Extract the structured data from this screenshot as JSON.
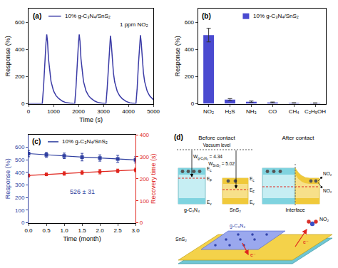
{
  "chart_data": [
    {
      "type": "line",
      "title": "(a)",
      "x_label": "Time (s)",
      "y_label": "Response (%)",
      "x": [
        0,
        550,
        600,
        650,
        700,
        730,
        760,
        800,
        850,
        900,
        1000,
        1100,
        1200,
        1350,
        1500,
        1850,
        1900,
        1950,
        2000,
        2030,
        2060,
        2100,
        2150,
        2200,
        2300,
        2400,
        2500,
        2650,
        2800,
        3100,
        3150,
        3200,
        3250,
        3280,
        3310,
        3350,
        3400,
        3450,
        3550,
        3650,
        3750,
        3900,
        4050,
        4300,
        4350,
        4400,
        4450,
        4480,
        4510,
        4550,
        4600,
        4650,
        4750,
        4850,
        4950,
        5000
      ],
      "series": [
        {
          "name": "10% g-C₃N₄/SnS₂",
          "color": "#3b3ba6",
          "values": [
            0,
            0,
            120,
            300,
            450,
            510,
            460,
            330,
            230,
            165,
            95,
            60,
            40,
            20,
            8,
            0,
            120,
            300,
            450,
            510,
            460,
            330,
            230,
            165,
            95,
            60,
            40,
            20,
            8,
            0,
            115,
            290,
            440,
            500,
            450,
            320,
            225,
            160,
            92,
            58,
            38,
            18,
            7,
            0,
            115,
            290,
            440,
            505,
            455,
            325,
            228,
            162,
            93,
            58,
            38,
            30
          ]
        }
      ],
      "xlim": [
        0,
        5000
      ],
      "xticks": [
        0,
        1000,
        2000,
        3000,
        4000,
        5000
      ],
      "ylim": [
        0,
        700
      ],
      "yticks": [
        0,
        200,
        400,
        600
      ],
      "annotations": [
        "1 ppm NO₂"
      ],
      "legend": "upper left",
      "grid": false
    },
    {
      "type": "bar",
      "title": "(b)",
      "y_label": "Response (%)",
      "categories": [
        "NO₂",
        "H₂S",
        "NH₃",
        "CO",
        "CH₄",
        "C₂H₅OH"
      ],
      "series": [
        {
          "name": "10% g-C₃N₄/SnS₂",
          "color": "#4a4ad0",
          "values": [
            505,
            30,
            15,
            10,
            6,
            5
          ],
          "error": [
            50,
            8,
            5,
            3,
            2,
            2
          ]
        }
      ],
      "ylim": [
        0,
        700
      ],
      "yticks": [
        0,
        200,
        400,
        600
      ],
      "legend": "upper right",
      "grid": false
    },
    {
      "type": "line",
      "title": "(c)",
      "x_label": "Time (month)",
      "y_label": "Response (%)",
      "y2_label": "Recovery time (s)",
      "x": [
        0,
        0.5,
        1,
        1.5,
        2,
        2.5,
        3
      ],
      "series": [
        {
          "name": "10% g-C₃N₄/SnS₂",
          "color": "#2f3fa0",
          "marker": "square",
          "values": [
            550,
            540,
            532,
            522,
            515,
            508,
            500
          ],
          "error": [
            25,
            20,
            22,
            30,
            25,
            28,
            25
          ]
        },
        {
          "color": "#e0261e",
          "marker": "circle",
          "axis": "y2",
          "values": [
            215,
            220,
            224,
            228,
            232,
            236,
            240
          ],
          "error": [
            6,
            6,
            8,
            8,
            10,
            8,
            8
          ]
        }
      ],
      "xlim": [
        0,
        3
      ],
      "xticks": [
        {
          "value": 0,
          "label": "0.0"
        },
        {
          "value": 0.5,
          "label": "0.5"
        },
        {
          "value": 1,
          "label": "1.0"
        },
        {
          "value": 1.5,
          "label": "1.5"
        },
        {
          "value": 2,
          "label": "2.0"
        },
        {
          "value": 2.5,
          "label": "2.5"
        },
        {
          "value": 3,
          "label": "3.0"
        }
      ],
      "ylim": [
        0,
        700
      ],
      "yticks": [
        0,
        100,
        200,
        300,
        400,
        500,
        600
      ],
      "y2lim": [
        0,
        400
      ],
      "y2ticks": [
        0,
        100,
        200,
        300,
        400
      ],
      "annotations": [
        "526 ± 31"
      ],
      "legend": "upper left",
      "grid": false
    }
  ],
  "diagram": {
    "label": "(d)",
    "before": "Before contact",
    "after": "After contact",
    "vacuum_level": "Vacuum level",
    "work_functions": [
      {
        "main": "W",
        "sub": "g-C₃N₄",
        "rest": " = 4.34"
      },
      {
        "main": "W",
        "sub": "SnS₂",
        "rest": " = 5.02"
      }
    ],
    "levels": {
      "conduction": {
        "main": "E",
        "sub": "c"
      },
      "fermi": {
        "main": "E",
        "sub": "F"
      },
      "valence": {
        "main": "E",
        "sub": "v"
      }
    },
    "materials": [
      "g-C₃N₄",
      "SnS₂"
    ],
    "interface": "Interface",
    "gas": "NO₂",
    "electron": "e⁻"
  }
}
